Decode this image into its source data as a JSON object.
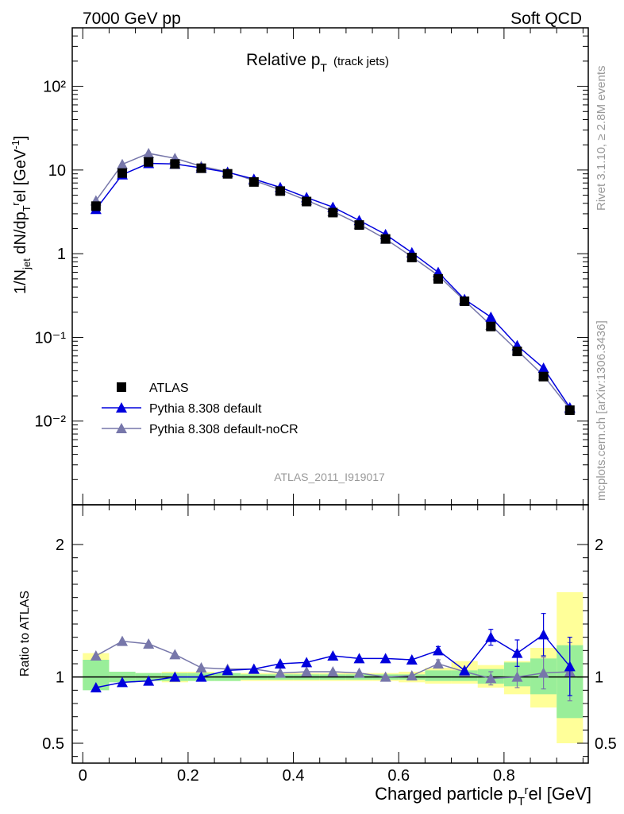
{
  "header": {
    "left": "7000 GeV pp",
    "right": "Soft QCD"
  },
  "side_labels": {
    "rivet": "Rivet 3.1.10, ≥ 2.8M events",
    "mcplots": "mcplots.cern.ch [arXiv:1306.3436]"
  },
  "chart_data": [
    {
      "type": "scatter",
      "panel": "main",
      "title": "Relative p",
      "title_sub": "T",
      "title_note": "(track jets)",
      "ylabel": "1/N_jet dN/dp_T^rel [GeV^-1]",
      "yscale": "log",
      "ylim": [
        0.001,
        500
      ],
      "xlim": [
        -0.02,
        0.96
      ],
      "ytick_labels": [
        "10⁻²",
        "10⁻¹",
        "1",
        "10",
        "10²"
      ],
      "watermark": "ATLAS_2011_I919017",
      "legend_position": "lower-left",
      "legend": [
        "ATLAS",
        "Pythia 8.308 default",
        "Pythia 8.308 default-noCR"
      ],
      "x": [
        0.025,
        0.075,
        0.125,
        0.175,
        0.225,
        0.275,
        0.325,
        0.375,
        0.425,
        0.475,
        0.525,
        0.575,
        0.625,
        0.675,
        0.725,
        0.775,
        0.825,
        0.875,
        0.925
      ],
      "series": [
        {
          "name": "ATLAS",
          "color": "#000000",
          "marker": "square",
          "values": [
            3.7,
            9.2,
            12.5,
            11.8,
            10.5,
            9.0,
            7.2,
            5.6,
            4.2,
            3.1,
            2.2,
            1.5,
            0.9,
            0.5,
            0.27,
            0.135,
            0.068,
            0.034,
            0.0135
          ]
        },
        {
          "name": "Pythia 8.308 default",
          "color": "#0000dd",
          "marker": "triangle",
          "values": [
            3.4,
            8.8,
            12.0,
            11.8,
            10.6,
            9.4,
            7.8,
            6.2,
            4.7,
            3.6,
            2.5,
            1.7,
            1.03,
            0.6,
            0.285,
            0.175,
            0.08,
            0.043,
            0.0145
          ]
        },
        {
          "name": "Pythia 8.308 default-noCR",
          "color": "#7777aa",
          "marker": "triangle",
          "values": [
            4.3,
            11.7,
            15.8,
            13.8,
            11.1,
            9.5,
            7.5,
            5.8,
            4.35,
            3.2,
            2.25,
            1.5,
            0.92,
            0.55,
            0.275,
            0.14,
            0.07,
            0.035,
            0.014
          ]
        }
      ]
    },
    {
      "type": "scatter",
      "panel": "ratio",
      "ylabel": "Ratio to ATLAS",
      "xlabel": "Charged particle p_T^rel [GeV]",
      "ylim": [
        0.35,
        2.3
      ],
      "xlim": [
        -0.02,
        0.96
      ],
      "ytick_labels": [
        "0.5",
        "1",
        "2"
      ],
      "xtick_labels": [
        "0",
        "0.2",
        "0.4",
        "0.6",
        "0.8"
      ],
      "x": [
        0.025,
        0.075,
        0.125,
        0.175,
        0.225,
        0.275,
        0.325,
        0.375,
        0.425,
        0.475,
        0.525,
        0.575,
        0.625,
        0.675,
        0.725,
        0.775,
        0.825,
        0.875,
        0.925
      ],
      "band_stat": [
        [
          0.9,
          1.13
        ],
        [
          0.96,
          1.04
        ],
        [
          0.97,
          1.03
        ],
        [
          0.97,
          1.03
        ],
        [
          0.97,
          1.03
        ],
        [
          0.97,
          1.03
        ],
        [
          0.98,
          1.02
        ],
        [
          0.98,
          1.02
        ],
        [
          0.98,
          1.02
        ],
        [
          0.98,
          1.02
        ],
        [
          0.98,
          1.02
        ],
        [
          0.98,
          1.02
        ],
        [
          0.98,
          1.02
        ],
        [
          0.97,
          1.05
        ],
        [
          0.97,
          1.05
        ],
        [
          0.95,
          1.06
        ],
        [
          0.93,
          1.11
        ],
        [
          0.87,
          1.14
        ],
        [
          0.69,
          1.24
        ]
      ],
      "band_syst": [
        [
          0.92,
          1.18
        ],
        [
          0.97,
          1.03
        ],
        [
          0.97,
          1.03
        ],
        [
          0.96,
          1.04
        ],
        [
          0.97,
          1.04
        ],
        [
          0.97,
          1.03
        ],
        [
          0.97,
          1.03
        ],
        [
          0.97,
          1.03
        ],
        [
          0.97,
          1.03
        ],
        [
          0.97,
          1.03
        ],
        [
          0.97,
          1.03
        ],
        [
          0.97,
          1.03
        ],
        [
          0.96,
          1.04
        ],
        [
          0.95,
          1.07
        ],
        [
          0.95,
          1.12
        ],
        [
          0.92,
          1.09
        ],
        [
          0.87,
          1.12
        ],
        [
          0.77,
          1.22
        ],
        [
          0.5,
          1.64
        ]
      ],
      "series": [
        {
          "name": "Pythia 8.308 default",
          "color": "#0000dd",
          "values": [
            0.92,
            0.96,
            0.97,
            1.0,
            1.0,
            1.05,
            1.06,
            1.1,
            1.11,
            1.16,
            1.14,
            1.14,
            1.13,
            1.2,
            1.05,
            1.3,
            1.18,
            1.32,
            1.08
          ],
          "errors": [
            0,
            0,
            0,
            0,
            0,
            0,
            0,
            0,
            0,
            0,
            0,
            0,
            0,
            0.03,
            0,
            0.06,
            0.1,
            0.16,
            0.22
          ]
        },
        {
          "name": "Pythia 8.308 default-noCR",
          "color": "#7777aa",
          "values": [
            1.16,
            1.27,
            1.25,
            1.17,
            1.07,
            1.06,
            1.06,
            1.03,
            1.04,
            1.04,
            1.03,
            1.0,
            1.01,
            1.1,
            1.04,
            0.99,
            1.0,
            1.03,
            1.04
          ],
          "errors": [
            0,
            0,
            0,
            0,
            0,
            0,
            0,
            0,
            0,
            0,
            0,
            0,
            0,
            0.03,
            0,
            0.05,
            0.08,
            0.12,
            0.22
          ]
        }
      ]
    }
  ],
  "colors": {
    "band_syst": "#ffff99",
    "band_stat": "#99ee99"
  }
}
